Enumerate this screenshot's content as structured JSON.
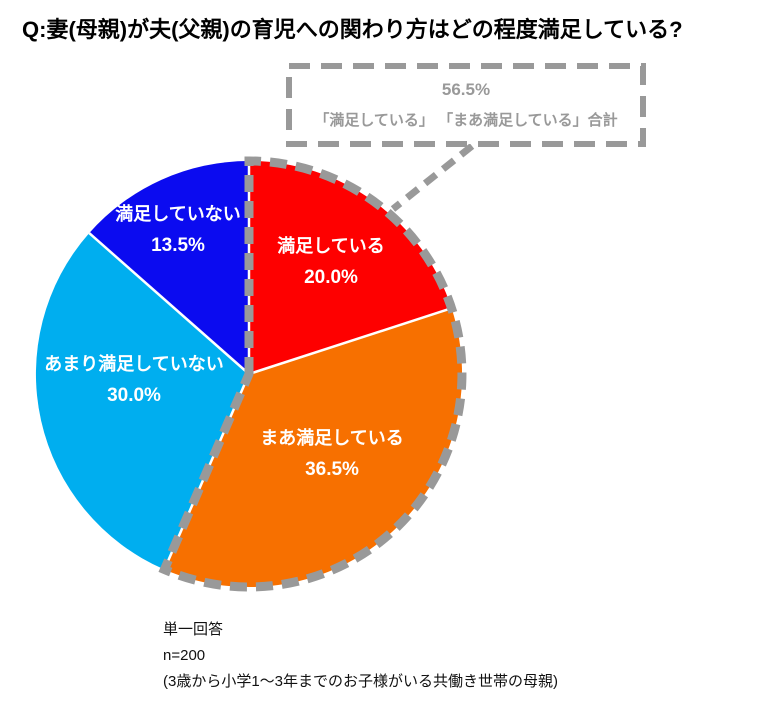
{
  "title": "Q:妻(母親)が夫(父親)の育児への関わり方はどの程度満足している?",
  "callout": {
    "percent": "56.5%",
    "caption": "「満足している」 「まあ満足している」合計"
  },
  "footnote": {
    "line1": "単一回答",
    "line2": "n=200",
    "line3": "(3歳から小学1〜3年までのお子様がいる共働き世帯の母親)"
  },
  "colors": {
    "highlight_outline": "#999999",
    "callout_border": "#999999",
    "callout_text": "#999999",
    "slice_label_text": "#ffffff",
    "title_text": "#000000",
    "footnote_text": "#111111"
  },
  "chart_data": {
    "type": "pie",
    "title": "Q:妻(母親)が夫(父親)の育児への関わり方はどの程度満足している?",
    "start_angle_deg": 0,
    "direction": "clockwise",
    "unit": "%",
    "sample": "n=200",
    "slices": [
      {
        "label": "満足している",
        "value": 20.0,
        "display": "20.0%",
        "color": "#fe0000"
      },
      {
        "label": "まあ満足している",
        "value": 36.5,
        "display": "36.5%",
        "color": "#f77000"
      },
      {
        "label": "あまり満足していない",
        "value": 30.0,
        "display": "30.0%",
        "color": "#00aeef"
      },
      {
        "label": "満足していない",
        "value": 13.5,
        "display": "13.5%",
        "color": "#0b0bf0"
      }
    ],
    "highlight_group": {
      "slice_indexes": [
        0,
        1
      ],
      "total": "56.5%",
      "note": "「満足している」 「まあ満足している」合計"
    }
  }
}
